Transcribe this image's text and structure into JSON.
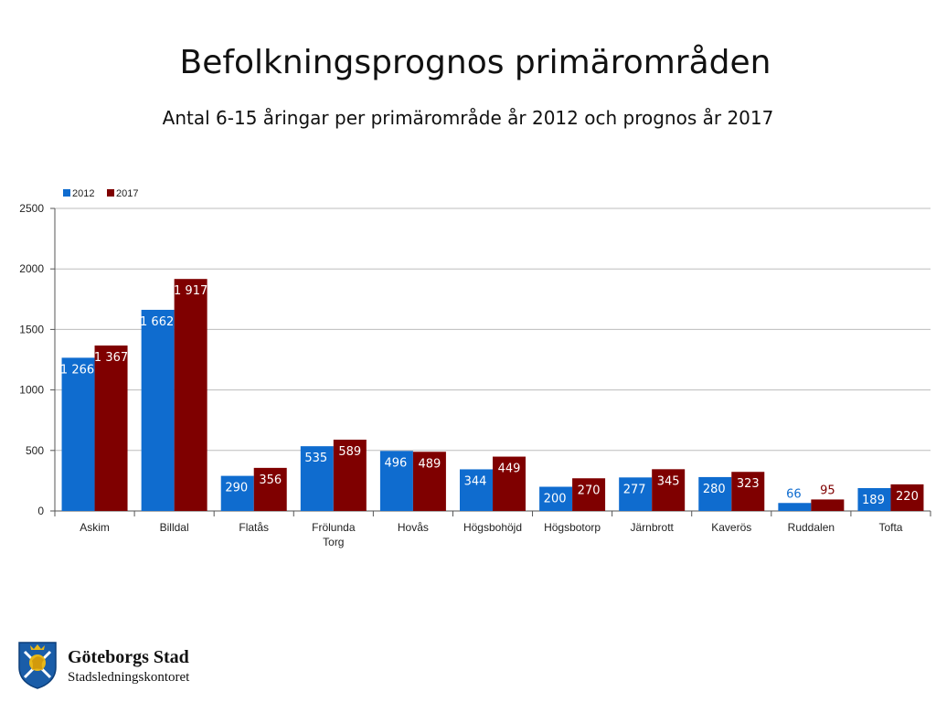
{
  "header": {
    "title": "Befolkningsprognos primärområden",
    "subtitle": "Antal 6-15 åringar per primärområde år 2012 och prognos år 2017"
  },
  "chart_data": {
    "type": "bar",
    "title": "Befolkningsprognos primärområden",
    "subtitle": "Antal 6-15 åringar per primärområde år 2012 och prognos år 2017",
    "xlabel": "",
    "ylabel": "",
    "ylim": [
      0,
      2500
    ],
    "yticks": [
      0,
      500,
      1000,
      1500,
      2000,
      2500
    ],
    "grid": true,
    "legend_position": "top-left",
    "categories": [
      "Askim",
      "Billdal",
      "Flatås",
      "Frölunda Torg",
      "Hovås",
      "Högsbohöjd",
      "Högsbotorp",
      "Järnbrott",
      "Kaverös",
      "Ruddalen",
      "Tofta"
    ],
    "category_lines": [
      [
        "Askim"
      ],
      [
        "Billdal"
      ],
      [
        "Flatås"
      ],
      [
        "Frölunda",
        "Torg"
      ],
      [
        "Hovås"
      ],
      [
        "Högsbohöjd"
      ],
      [
        "Högsbotorp"
      ],
      [
        "Järnbrott"
      ],
      [
        "Kaverös"
      ],
      [
        "Ruddalen"
      ],
      [
        "Tofta"
      ]
    ],
    "series": [
      {
        "name": "2012",
        "color": "#0f6ccf",
        "values": [
          1266,
          1662,
          290,
          535,
          496,
          344,
          200,
          277,
          280,
          66,
          189
        ],
        "labels": [
          "1 266",
          "1 662",
          "290",
          "535",
          "496",
          "344",
          "200",
          "277",
          "280",
          "66",
          "189"
        ]
      },
      {
        "name": "2017",
        "color": "#7f0000",
        "values": [
          1367,
          1917,
          356,
          589,
          489,
          449,
          270,
          345,
          323,
          95,
          220
        ],
        "labels": [
          "1 367",
          "1 917",
          "356",
          "589",
          "489",
          "449",
          "270",
          "345",
          "323",
          "95",
          "220"
        ]
      }
    ]
  },
  "logo": {
    "name": "Göteborgs Stad",
    "subtitle": "Stadsledningskontoret",
    "icon": "city-crest-icon",
    "colors": {
      "blue": "#1a5da8",
      "gold": "#e8b818"
    }
  }
}
